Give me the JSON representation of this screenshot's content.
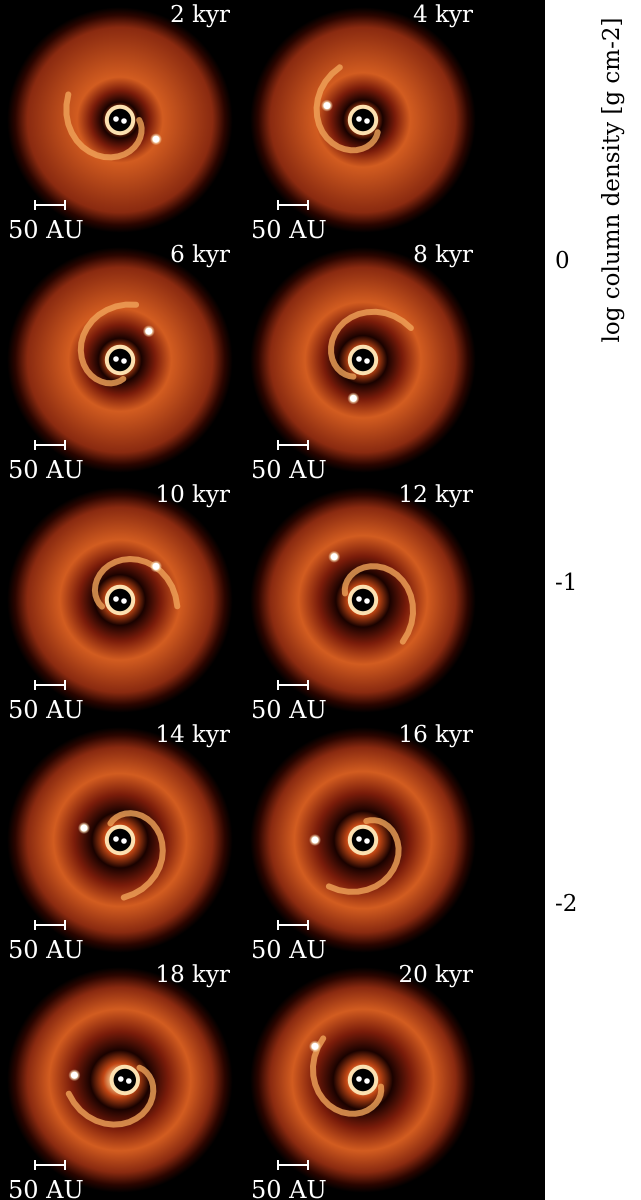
{
  "panels": [
    {
      "time": "2 kyr",
      "scale": "50 AU",
      "planet": [
        0.65,
        0.58
      ],
      "binary": [
        0.5,
        0.5
      ],
      "gap": 0.2,
      "angle": 0
    },
    {
      "time": "4 kyr",
      "scale": "50 AU",
      "planet": [
        0.35,
        0.44
      ],
      "binary": [
        0.5,
        0.5
      ],
      "gap": 0.22,
      "angle": 40
    },
    {
      "time": "6 kyr",
      "scale": "50 AU",
      "planet": [
        0.62,
        0.38
      ],
      "binary": [
        0.5,
        0.5
      ],
      "gap": 0.24,
      "angle": 80
    },
    {
      "time": "8 kyr",
      "scale": "50 AU",
      "planet": [
        0.46,
        0.66
      ],
      "binary": [
        0.5,
        0.5
      ],
      "gap": 0.27,
      "angle": 120
    },
    {
      "time": "10 kyr",
      "scale": "50 AU",
      "planet": [
        0.65,
        0.36
      ],
      "binary": [
        0.5,
        0.5
      ],
      "gap": 0.28,
      "angle": 160
    },
    {
      "time": "12 kyr",
      "scale": "50 AU",
      "planet": [
        0.38,
        0.32
      ],
      "binary": [
        0.5,
        0.5
      ],
      "gap": 0.3,
      "angle": 200
    },
    {
      "time": "14 kyr",
      "scale": "50 AU",
      "planet": [
        0.35,
        0.45
      ],
      "binary": [
        0.5,
        0.5
      ],
      "gap": 0.31,
      "angle": 240
    },
    {
      "time": "16 kyr",
      "scale": "50 AU",
      "planet": [
        0.3,
        0.5
      ],
      "binary": [
        0.5,
        0.5
      ],
      "gap": 0.32,
      "angle": 280
    },
    {
      "time": "18 kyr",
      "scale": "50 AU",
      "planet": [
        0.31,
        0.48
      ],
      "binary": [
        0.52,
        0.5
      ],
      "gap": 0.33,
      "angle": 320
    },
    {
      "time": "20 kyr",
      "scale": "50 AU",
      "planet": [
        0.3,
        0.36
      ],
      "binary": [
        0.5,
        0.5
      ],
      "gap": 0.33,
      "angle": 20
    }
  ],
  "colorbar": {
    "label": "log column density [g cm-2]",
    "ticks": [
      "0",
      "-1",
      "-2"
    ],
    "tick_values": [
      0,
      -1,
      -2
    ],
    "range": [
      -2.9,
      0.85
    ],
    "colors": [
      "#000000",
      "#3a0500",
      "#7a1a08",
      "#b8380f",
      "#de6a25",
      "#f2a350",
      "#fff8ee"
    ]
  }
}
